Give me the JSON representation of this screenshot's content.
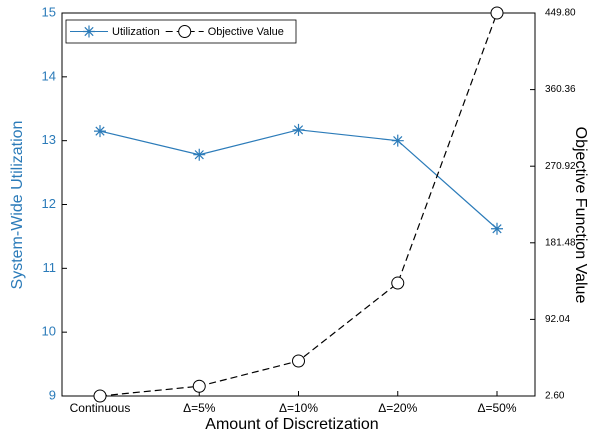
{
  "chart_data": {
    "type": "line",
    "x_label": "Amount of Discretization",
    "y_label": "System-Wide Utilization",
    "y2_label": "Objective Function Value",
    "categories": [
      "Continuous",
      "Δ=5%",
      "Δ=10%",
      "Δ=20%",
      "Δ=50%"
    ],
    "series": [
      {
        "name": "Utilization",
        "color": "#2b7bb9",
        "marker": "asterisk",
        "dash": false,
        "values": [
          13.15,
          12.78,
          13.17,
          13.0,
          11.62
        ]
      },
      {
        "name": "Objective Value",
        "color": "#000000",
        "marker": "circle",
        "dash": true,
        "axis": "y2",
        "values": [
          2.6,
          14,
          43.5,
          134.5,
          449.8
        ]
      }
    ],
    "ylim": [
      9,
      15
    ],
    "yticks": [
      9,
      10,
      11,
      12,
      13,
      14,
      15
    ],
    "y2lim": [
      2.6,
      449.8
    ],
    "y2ticks": [
      {
        "value": 2.6,
        "label": "2.60"
      },
      92.04,
      181.48,
      270.92,
      360.36,
      {
        "value": 449.8,
        "label": "449.80"
      }
    ],
    "y_label_color": "#2b7bb9",
    "legend": "upper left"
  }
}
